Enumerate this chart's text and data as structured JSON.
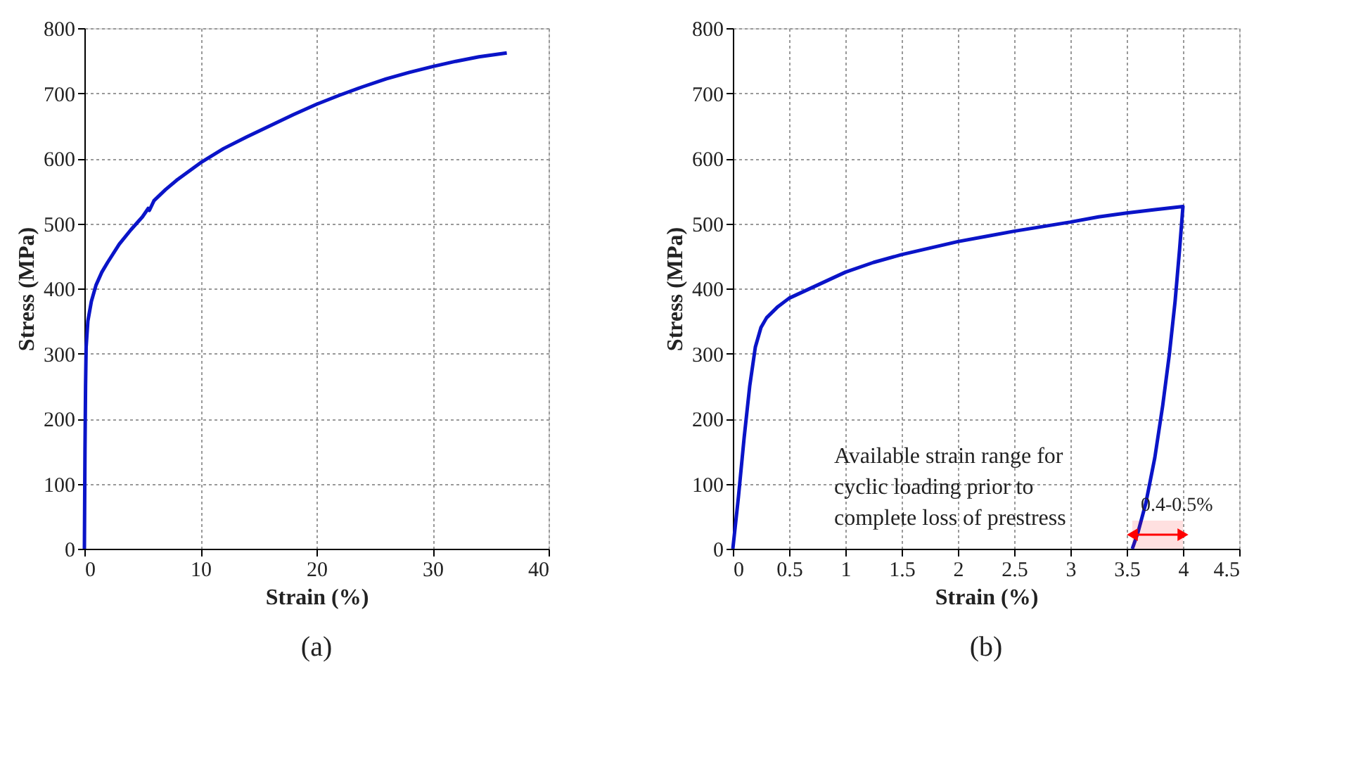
{
  "chart_data": [
    {
      "type": "line",
      "title": "(a)",
      "xlabel": "Strain (%)",
      "ylabel": "Stress (MPa)",
      "xlim": [
        0,
        40
      ],
      "xticks": [
        0,
        10,
        20,
        30,
        40
      ],
      "ylim": [
        0,
        800
      ],
      "yticks": [
        0,
        100,
        200,
        300,
        400,
        500,
        600,
        700,
        800
      ],
      "grid": true,
      "marker": "none",
      "line_style": "solid",
      "series": [
        {
          "color": "#0a14c8",
          "x": [
            0,
            0.05,
            0.1,
            0.15,
            0.3,
            0.6,
            1,
            1.5,
            2,
            3,
            4,
            5,
            5.5,
            5.6,
            6,
            7,
            8,
            9,
            10,
            12,
            14,
            16,
            18,
            20,
            22,
            24,
            26,
            28,
            30,
            32,
            34,
            36.4
          ],
          "values": [
            0,
            150,
            250,
            310,
            350,
            380,
            405,
            425,
            440,
            468,
            490,
            510,
            523,
            520,
            535,
            552,
            567,
            580,
            593,
            615,
            633,
            650,
            667,
            683,
            697,
            710,
            722,
            732,
            741,
            749,
            756,
            762
          ]
        }
      ]
    },
    {
      "type": "line",
      "title": "(b)",
      "xlabel": "Strain (%)",
      "ylabel": "Stress (MPa)",
      "xlim": [
        0,
        4.5
      ],
      "xticks": [
        0,
        0.5,
        1,
        1.5,
        2,
        2.5,
        3,
        3.5,
        4,
        4.5
      ],
      "ylim": [
        0,
        800
      ],
      "yticks": [
        0,
        100,
        200,
        300,
        400,
        500,
        600,
        700,
        800
      ],
      "grid": true,
      "marker": "none",
      "line_style": "solid",
      "series": [
        {
          "color": "#0a14c8",
          "x": [
            0,
            0.05,
            0.1,
            0.15,
            0.2,
            0.25,
            0.3,
            0.4,
            0.5,
            0.75,
            1,
            1.25,
            1.5,
            1.75,
            2,
            2.25,
            2.5,
            2.75,
            3,
            3.25,
            3.5,
            3.75,
            4,
            3.97,
            3.93,
            3.88,
            3.82,
            3.75,
            3.67,
            3.6,
            3.55
          ],
          "values": [
            0,
            80,
            170,
            250,
            310,
            340,
            355,
            372,
            385,
            405,
            425,
            440,
            452,
            462,
            472,
            480,
            488,
            495,
            502,
            510,
            516,
            521,
            526,
            460,
            380,
            300,
            220,
            140,
            70,
            25,
            0
          ]
        }
      ],
      "annotations": [
        "Available strain range for\ncyclic loading prior to\ncomplete loss of prestress"
      ],
      "bands": [
        {
          "axis": "x",
          "from": 3.55,
          "to": 4.0,
          "label": "0.4-0.5%",
          "color": "#ff0000"
        }
      ]
    }
  ]
}
